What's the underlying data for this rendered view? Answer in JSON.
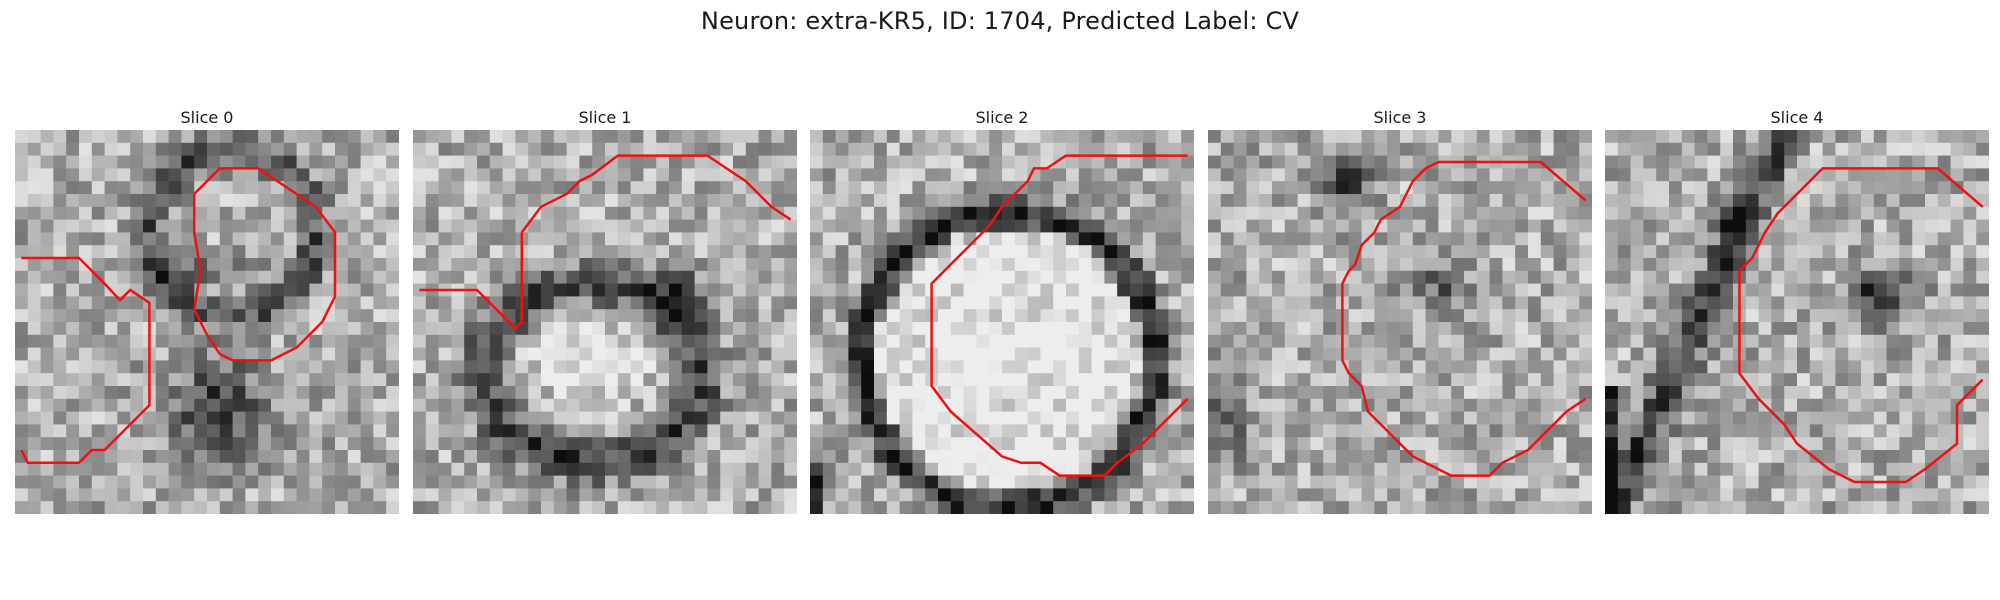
{
  "figure": {
    "title": "Neuron: extra-KR5, ID: 1704, Predicted Label: CV",
    "contour_color": "#ee1111"
  },
  "panels": [
    {
      "title": "Slice 0"
    },
    {
      "title": "Slice 1"
    },
    {
      "title": "Slice 2"
    },
    {
      "title": "Slice 3"
    },
    {
      "title": "Slice 4"
    }
  ]
}
